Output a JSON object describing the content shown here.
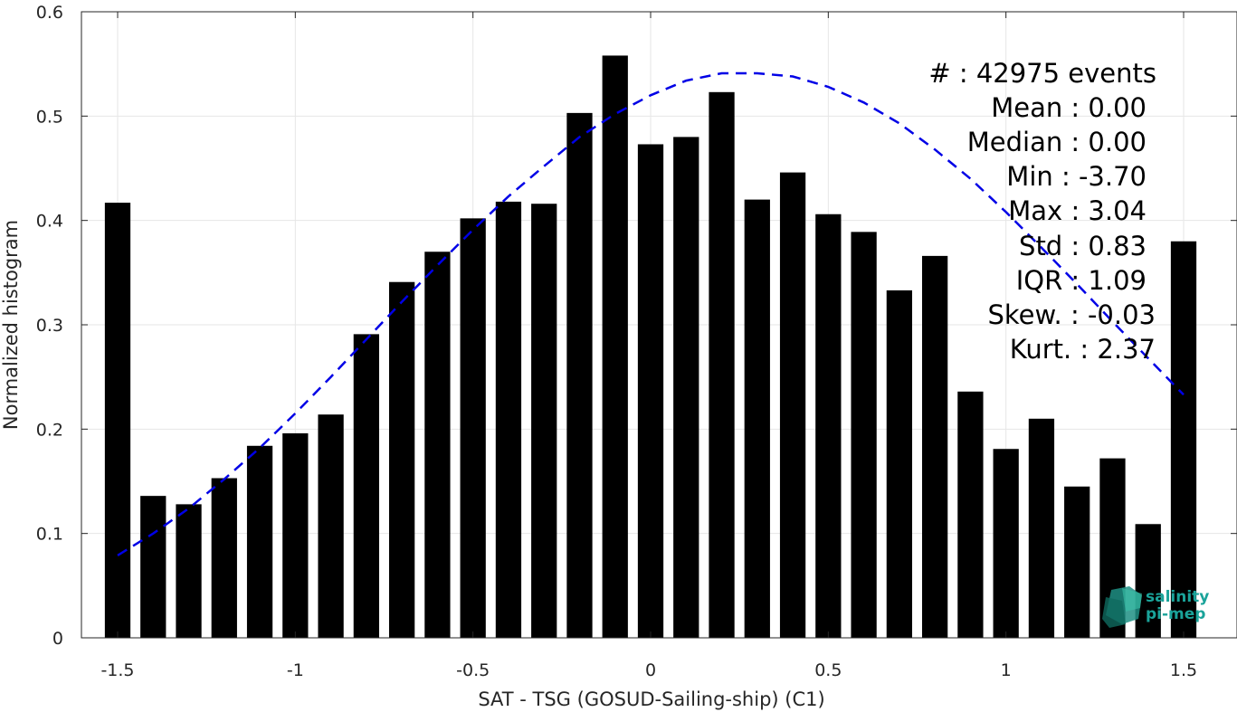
{
  "chart_data": {
    "type": "bar",
    "xlabel": "SAT - TSG (GOSUD-Sailing-ship) (C1)",
    "ylabel": "Normalized histogram",
    "xlim": [
      -1.6,
      1.6
    ],
    "ylim": [
      0,
      0.6
    ],
    "xticks": [
      -1.5,
      -1,
      -0.5,
      0,
      0.5,
      1,
      1.5
    ],
    "xtick_labels": [
      "-1.5",
      "-1",
      "-0.5",
      "0",
      "0.5",
      "1",
      "1.5"
    ],
    "yticks": [
      0,
      0.1,
      0.2,
      0.3,
      0.4,
      0.5,
      0.6
    ],
    "ytick_labels": [
      "0",
      "0.1",
      "0.2",
      "0.3",
      "0.4",
      "0.5",
      "0.6"
    ],
    "grid": true,
    "bin_width": 0.1,
    "x": [
      -1.5,
      -1.4,
      -1.3,
      -1.2,
      -1.1,
      -1.0,
      -0.9,
      -0.8,
      -0.7,
      -0.6,
      -0.5,
      -0.4,
      -0.3,
      -0.2,
      -0.1,
      0.0,
      0.1,
      0.2,
      0.3,
      0.4,
      0.5,
      0.6,
      0.7,
      0.8,
      0.9,
      1.0,
      1.1,
      1.2,
      1.3,
      1.4,
      1.5
    ],
    "values": [
      0.417,
      0.136,
      0.128,
      0.153,
      0.184,
      0.196,
      0.214,
      0.291,
      0.341,
      0.37,
      0.402,
      0.418,
      0.416,
      0.503,
      0.558,
      0.473,
      0.48,
      0.523,
      0.42,
      0.446,
      0.406,
      0.389,
      0.333,
      0.366,
      0.236,
      0.181,
      0.21,
      0.145,
      0.172,
      0.109,
      0.38
    ],
    "bar_color": "#000000",
    "fit": {
      "style": "dashed",
      "color": "#0000e6",
      "x": [
        -1.5,
        -1.4,
        -1.3,
        -1.2,
        -1.1,
        -1.0,
        -0.9,
        -0.8,
        -0.7,
        -0.6,
        -0.5,
        -0.4,
        -0.3,
        -0.2,
        -0.1,
        0.0,
        0.1,
        0.2,
        0.3,
        0.4,
        0.5,
        0.6,
        0.7,
        0.8,
        0.9,
        1.0,
        1.1,
        1.2,
        1.3,
        1.4,
        1.5
      ],
      "y": [
        0.079,
        0.1,
        0.124,
        0.152,
        0.182,
        0.215,
        0.25,
        0.286,
        0.322,
        0.357,
        0.391,
        0.423,
        0.452,
        0.48,
        0.502,
        0.52,
        0.534,
        0.541,
        0.541,
        0.538,
        0.528,
        0.513,
        0.493,
        0.468,
        0.44,
        0.408,
        0.374,
        0.339,
        0.303,
        0.268,
        0.233
      ]
    }
  },
  "stats": [
    {
      "label": "#  : 42975 events"
    },
    {
      "label": "Mean : 0.00"
    },
    {
      "label": "Median : 0.00"
    },
    {
      "label": "Min : -3.70"
    },
    {
      "label": "Max : 3.04"
    },
    {
      "label": "Std : 0.83"
    },
    {
      "label": "IQR : 1.09"
    },
    {
      "label": "Skew. : -0.03"
    },
    {
      "label": "Kurt. : 2.37"
    }
  ],
  "logo": {
    "line1": "salinity",
    "line2": "pi-mep",
    "color": "#1aa39a"
  }
}
